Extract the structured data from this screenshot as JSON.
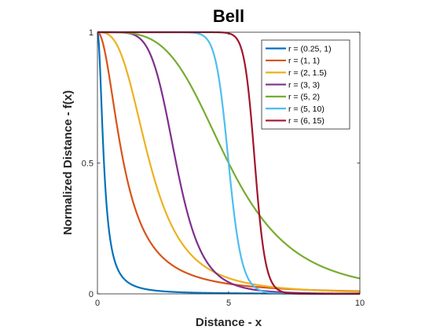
{
  "chart_data": {
    "type": "line",
    "title": "Bell",
    "xlabel": "Distance - x",
    "ylabel": "Normalized Distance - f(x)",
    "xlim": [
      0,
      10
    ],
    "ylim": [
      0,
      1
    ],
    "xticks": [
      0,
      5,
      10
    ],
    "yticks": [
      0,
      0.5,
      1
    ],
    "xtick_labels": [
      "0",
      "5",
      "10"
    ],
    "ytick_labels": [
      "0",
      "0.5",
      "1"
    ],
    "grid": false,
    "legend_position": "top-right",
    "function": "f(x) = 1 / (1 + (x / a)^(2b))",
    "series": [
      {
        "name": "r = (0.25, 1)",
        "a": 0.25,
        "b": 1,
        "color": "#0072BD"
      },
      {
        "name": "r = (1, 1)",
        "a": 1,
        "b": 1,
        "color": "#D95319"
      },
      {
        "name": "r = (2, 1.5)",
        "a": 2,
        "b": 1.5,
        "color": "#EDB120"
      },
      {
        "name": "r = (3, 3)",
        "a": 3,
        "b": 3,
        "color": "#7E2F8E"
      },
      {
        "name": "r = (5, 2)",
        "a": 5,
        "b": 2,
        "color": "#77AC30"
      },
      {
        "name": "r = (5, 10)",
        "a": 5,
        "b": 10,
        "color": "#4DBEEE"
      },
      {
        "name": "r = (6, 15)",
        "a": 6,
        "b": 15,
        "color": "#A2142F"
      }
    ]
  }
}
